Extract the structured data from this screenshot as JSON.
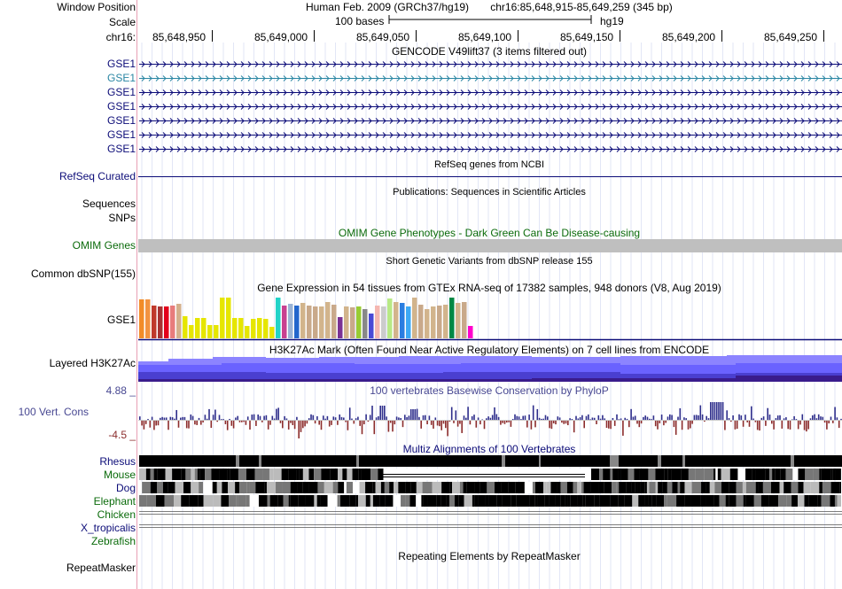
{
  "header": {
    "window_position_label": "Window Position",
    "scale_label": "Scale",
    "chrom_label": "chr16:",
    "assembly": "Human Feb. 2009 (GRCh37/hg19)",
    "position": "chr16:85,648,915-85,649,259 (345 bp)",
    "scale_bar_text": "100 bases",
    "scale_db": "hg19",
    "ticks": [
      "85,648,950",
      "85,649,000",
      "85,649,050",
      "85,649,100",
      "85,649,150",
      "85,649,200",
      "85,649,250"
    ]
  },
  "gencode": {
    "title": "GENCODE V49lift37 (3 items filtered out)",
    "items": [
      "GSE1",
      "GSE1",
      "GSE1",
      "GSE1",
      "GSE1",
      "GSE1",
      "GSE1"
    ]
  },
  "refseq": {
    "label": "RefSeq Curated",
    "title": "RefSeq genes from NCBI"
  },
  "publications": {
    "label": "Sequences",
    "title": "Publications: Sequences in Scientific Articles"
  },
  "snps_label": "SNPs",
  "omim": {
    "label": "OMIM Genes",
    "title": "OMIM Gene Phenotypes - Dark Green Can Be Disease-causing"
  },
  "dbsnp": {
    "label": "Common dbSNP(155)",
    "title": "Short Genetic Variants from dbSNP release 155"
  },
  "gtex": {
    "title": "Gene Expression in 54 tissues from GTEx RNA-seq of 17382 samples, 948 donors (V8, Aug 2019)",
    "gene_label": "GSE1",
    "bar_values": [
      0.95,
      0.95,
      0.8,
      0.78,
      0.78,
      0.8,
      0.85,
      0.55,
      0.32,
      0.5,
      0.5,
      0.32,
      0.32,
      1.0,
      1.0,
      0.5,
      0.5,
      0.3,
      0.48,
      0.5,
      0.48,
      0.28,
      1.0,
      0.8,
      0.85,
      0.8,
      0.88,
      0.8,
      0.78,
      0.78,
      0.9,
      0.82,
      0.52,
      0.78,
      0.75,
      0.78,
      0.72,
      0.6,
      0.8,
      0.78,
      0.98,
      0.9,
      0.86,
      0.78,
      1.0,
      0.82,
      0.72,
      0.78,
      0.8,
      0.82,
      1.0,
      0.88,
      0.9,
      0.3
    ],
    "bar_colors": [
      "#f28c28",
      "#f29340",
      "#c0392b",
      "#a83232",
      "#e3001b",
      "#e87c7c",
      "#d4b08c",
      "#e6e600",
      "#e6e600",
      "#e6e600",
      "#e6e600",
      "#e6e600",
      "#e6e600",
      "#e6e600",
      "#e6e600",
      "#e6e600",
      "#e6e600",
      "#e6e600",
      "#e6e600",
      "#e6e600",
      "#e6e600",
      "#e6e600",
      "#22d3c8",
      "#c94090",
      "#9ab3d5",
      "#2266cc",
      "#d2b48c",
      "#c9a98a",
      "#c9a98a",
      "#d2b48c",
      "#d2b48c",
      "#c9a98a",
      "#7b3294",
      "#d2b48c",
      "#c9a98a",
      "#99cc33",
      "#888888",
      "#4a4ad6",
      "#f5b7b1",
      "#cccccc",
      "#b8e986",
      "#d2b48c",
      "#2a7de1",
      "#3da9f5",
      "#d2b48c",
      "#c9a98a",
      "#d2b48c",
      "#d2b48c",
      "#c9a98a",
      "#d2b48c",
      "#008844",
      "#d2b48c",
      "#c9a98a",
      "#ff00cc"
    ]
  },
  "h3k27ac": {
    "label": "Layered H3K27Ac",
    "title": "H3K27Ac Mark (Often Found Near Active Regulatory Elements) on 7 cell lines from ENCODE"
  },
  "phylop": {
    "label": "100 Vert. Cons",
    "title": "100 vertebrates Basewise Conservation by PhyloP",
    "max": "4.88 _",
    "min": "-4.5 _"
  },
  "multiz": {
    "title": "Multiz Alignments of 100 Vertebrates",
    "species": [
      "Rhesus",
      "Mouse",
      "Dog",
      "Elephant",
      "Chicken",
      "X_tropicalis",
      "Zebrafish"
    ]
  },
  "repeatmasker": {
    "label": "RepeatMasker",
    "title": "Repeating Elements by RepeatMasker"
  },
  "colors": {
    "navy": "#0c0c78",
    "omim_bar": "#bfbfbf",
    "cons_pos": "#2e2e8c",
    "cons_neg": "#8b2c2c",
    "grid": "#cfd5f0",
    "divider": "#e8a0b4"
  }
}
